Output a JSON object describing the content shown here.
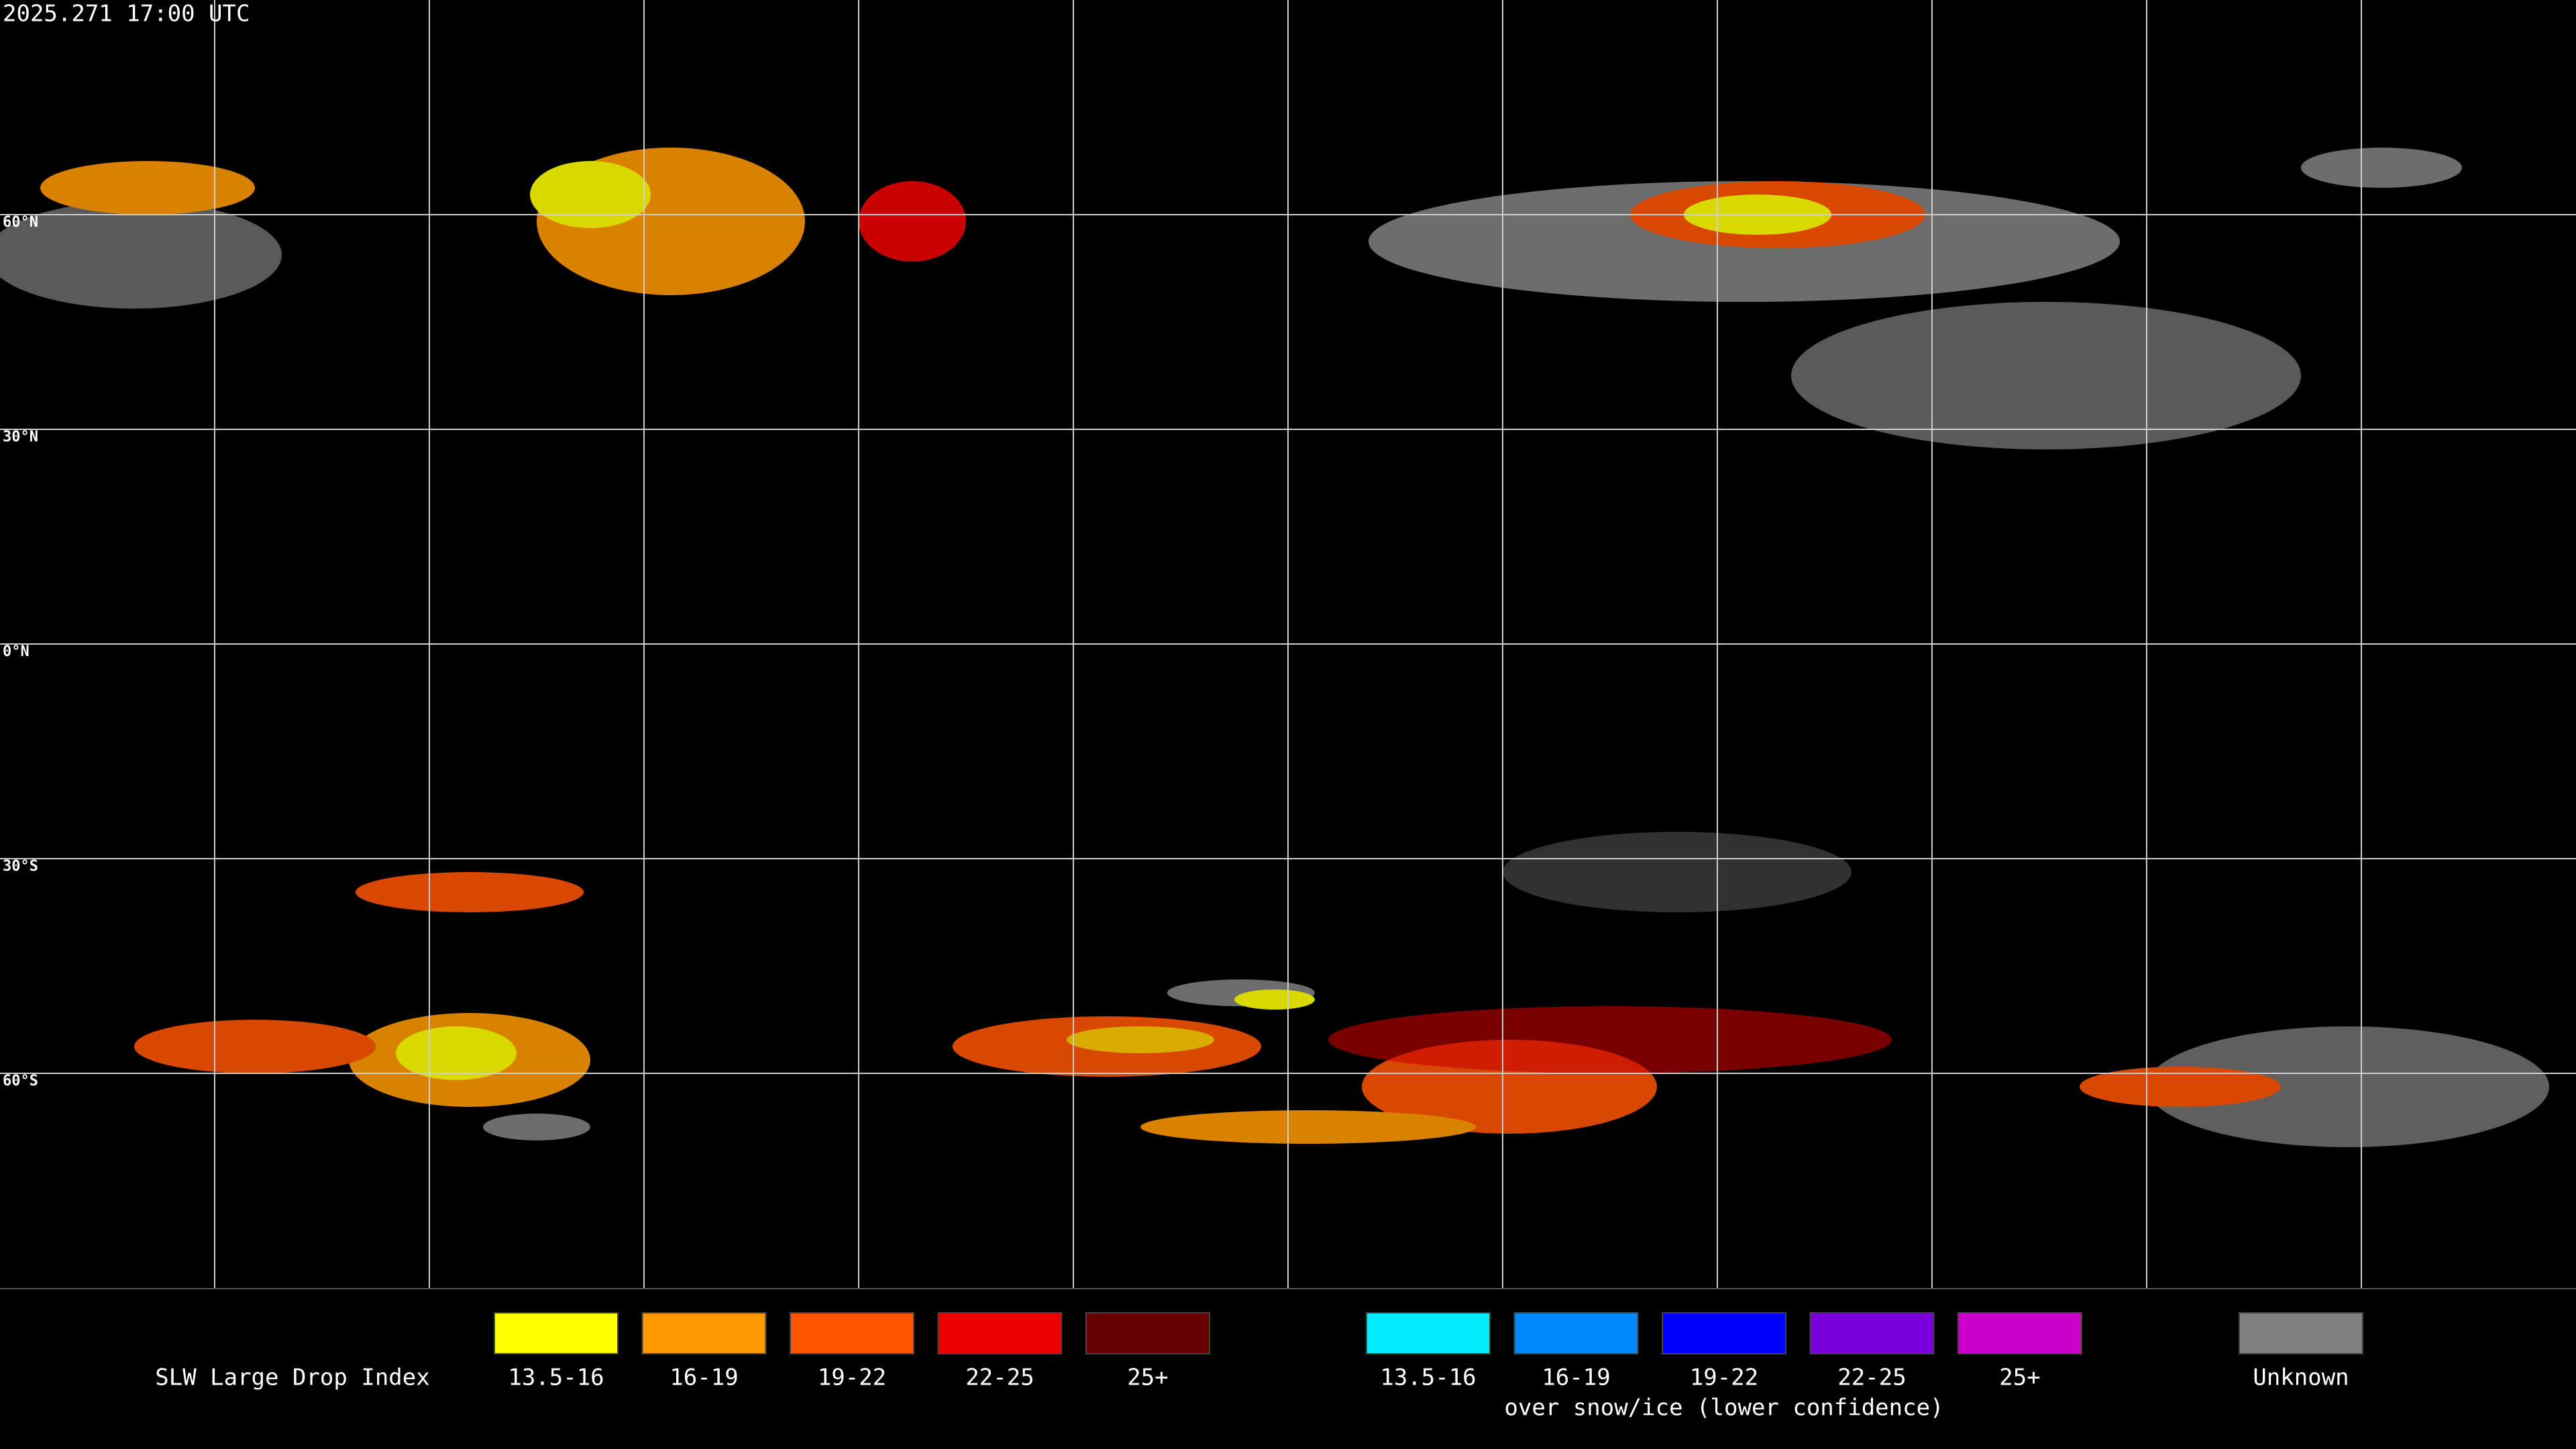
{
  "header": {
    "timestamp": "2025.271 17:00 UTC"
  },
  "latitude_labels": [
    "60°N",
    "30°N",
    "0°N",
    "30°S",
    "60°S"
  ],
  "legend": {
    "title": "SLW Large Drop Index",
    "groups": [
      {
        "items": [
          {
            "label": "13.5-16",
            "color": "#ffff00"
          },
          {
            "label": "16-19",
            "color": "#ff9900"
          },
          {
            "label": "19-22",
            "color": "#ff5500"
          },
          {
            "label": "22-25",
            "color": "#ee0000"
          },
          {
            "label": "25+",
            "color": "#660000"
          }
        ]
      },
      {
        "caption": "over snow/ice (lower confidence)",
        "items": [
          {
            "label": "13.5-16",
            "color": "#00eeff"
          },
          {
            "label": "16-19",
            "color": "#0088ff"
          },
          {
            "label": "19-22",
            "color": "#0000ff"
          },
          {
            "label": "22-25",
            "color": "#7700dd"
          },
          {
            "label": "25+",
            "color": "#cc00cc"
          }
        ]
      }
    ],
    "unknown": {
      "label": "Unknown",
      "color": "#808080"
    }
  }
}
